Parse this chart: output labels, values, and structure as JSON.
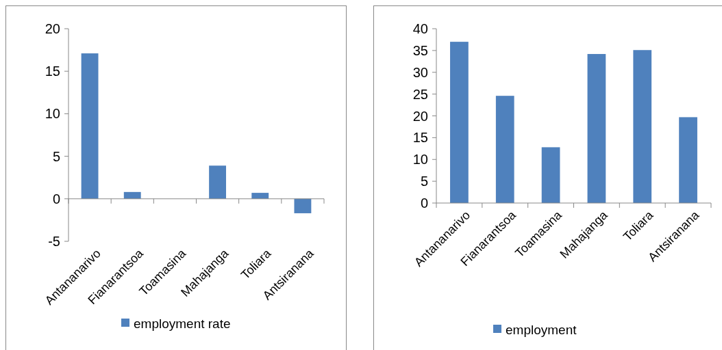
{
  "chart_data": [
    {
      "type": "bar",
      "categories": [
        "Antananarivo",
        "Fianarantsoa",
        "Toamasina",
        "Mahajanga",
        "Toliara",
        "Antsiranana"
      ],
      "series": [
        {
          "name": "employment rate",
          "color": "#4f81bd",
          "values": [
            17.1,
            0.8,
            0,
            3.9,
            0.7,
            -1.7
          ]
        }
      ],
      "ylim": [
        -5,
        20
      ],
      "yticks": [
        -5,
        0,
        5,
        10,
        15,
        20
      ],
      "legend": "bottom"
    },
    {
      "type": "bar",
      "categories": [
        "Antananarivo",
        "Fianarantsoa",
        "Toamasina",
        "Mahajanga",
        "Toliara",
        "Antsiranana"
      ],
      "series": [
        {
          "name": "employment",
          "color": "#4f81bd",
          "values": [
            37,
            24.6,
            12.8,
            34.2,
            35.1,
            19.7
          ]
        }
      ],
      "ylim": [
        0,
        40
      ],
      "yticks": [
        0,
        5,
        10,
        15,
        20,
        25,
        30,
        35,
        40
      ],
      "legend": "bottom",
      "grid": false
    }
  ]
}
